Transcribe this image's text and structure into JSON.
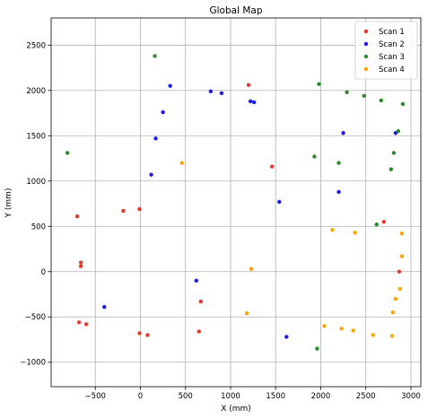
{
  "chart_data": {
    "type": "scatter",
    "title": "Global Map",
    "xlabel": "X (mm)",
    "ylabel": "Y (mm)",
    "xlim": [
      -990,
      3110
    ],
    "ylim": [
      -1270,
      2800
    ],
    "xticks": [
      -500,
      0,
      500,
      1000,
      1500,
      2000,
      2500,
      3000
    ],
    "yticks": [
      -1000,
      -500,
      0,
      500,
      1000,
      1500,
      2000,
      2500
    ],
    "grid": true,
    "legend_position": "top-right",
    "series": [
      {
        "name": "Scan 1",
        "color": "#e8372c",
        "points": [
          [
            1200,
            2060
          ],
          [
            1460,
            1160
          ],
          [
            -700,
            610
          ],
          [
            -190,
            670
          ],
          [
            -10,
            690
          ],
          [
            -660,
            100
          ],
          [
            -660,
            60
          ],
          [
            -680,
            -560
          ],
          [
            -600,
            -580
          ],
          [
            -10,
            -680
          ],
          [
            80,
            -700
          ],
          [
            670,
            -330
          ],
          [
            650,
            -660
          ],
          [
            2700,
            550
          ],
          [
            2870,
            0
          ]
        ]
      },
      {
        "name": "Scan 2",
        "color": "#1a1aec",
        "points": [
          [
            330,
            2050
          ],
          [
            780,
            1990
          ],
          [
            900,
            1970
          ],
          [
            1220,
            1880
          ],
          [
            1260,
            1870
          ],
          [
            250,
            1760
          ],
          [
            170,
            1470
          ],
          [
            2250,
            1530
          ],
          [
            2830,
            1530
          ],
          [
            120,
            1070
          ],
          [
            2200,
            880
          ],
          [
            1540,
            770
          ],
          [
            620,
            -100
          ],
          [
            -400,
            -390
          ],
          [
            1620,
            -720
          ]
        ]
      },
      {
        "name": "Scan 3",
        "color": "#2a8a2a",
        "points": [
          [
            160,
            2380
          ],
          [
            1980,
            2070
          ],
          [
            2290,
            1980
          ],
          [
            2480,
            1940
          ],
          [
            2670,
            1890
          ],
          [
            2910,
            1850
          ],
          [
            2860,
            1550
          ],
          [
            -810,
            1310
          ],
          [
            2810,
            1310
          ],
          [
            1930,
            1270
          ],
          [
            2200,
            1200
          ],
          [
            2780,
            1130
          ],
          [
            2620,
            520
          ],
          [
            1960,
            -850
          ]
        ]
      },
      {
        "name": "Scan 4",
        "color": "#ffa500",
        "points": [
          [
            460,
            1200
          ],
          [
            2130,
            460
          ],
          [
            2380,
            430
          ],
          [
            2900,
            420
          ],
          [
            2900,
            170
          ],
          [
            1230,
            30
          ],
          [
            2880,
            -190
          ],
          [
            2830,
            -300
          ],
          [
            1180,
            -460
          ],
          [
            2800,
            -450
          ],
          [
            2040,
            -600
          ],
          [
            2230,
            -630
          ],
          [
            2360,
            -650
          ],
          [
            2580,
            -700
          ],
          [
            2790,
            -710
          ]
        ]
      }
    ]
  }
}
